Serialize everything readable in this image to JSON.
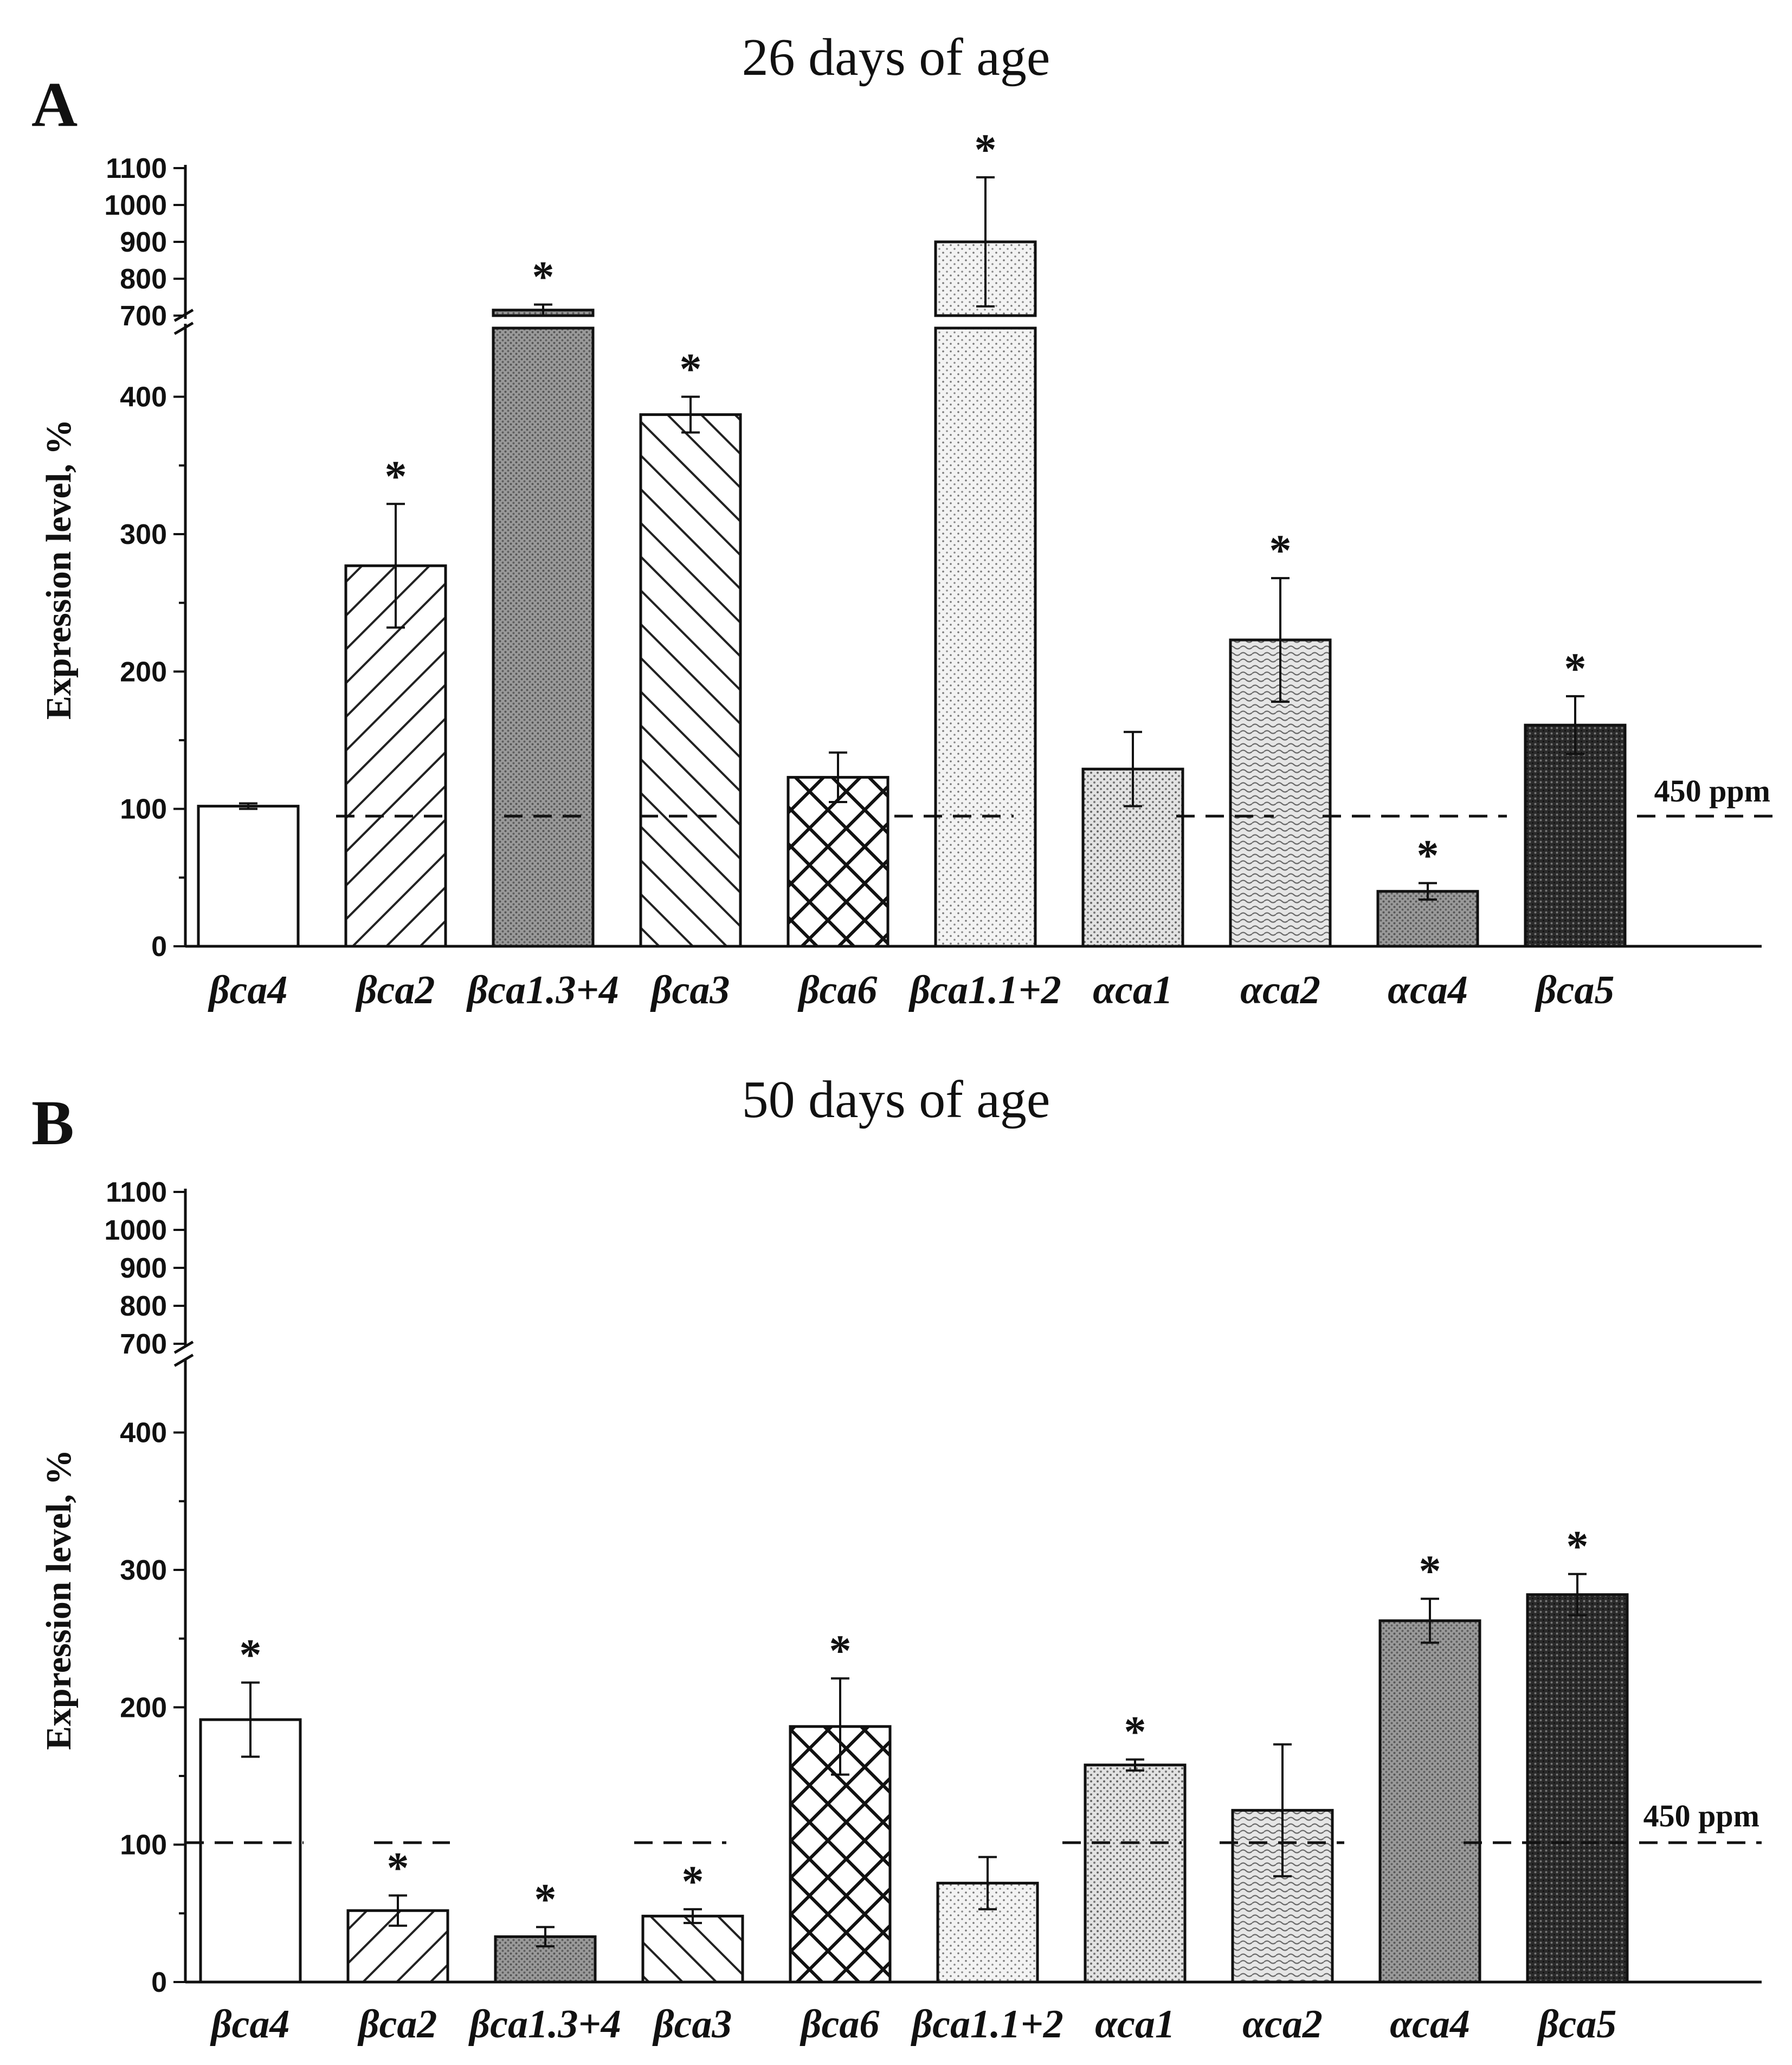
{
  "chart_data": [
    {
      "type": "bar",
      "panel_label": "A",
      "title": "26 days of age",
      "xlabel": "",
      "ylabel": "Expression level, %",
      "categories": [
        "βca4",
        "βca2",
        "βca1.3+4",
        "βca3",
        "βca6",
        "βca1.1+2",
        "αca1",
        "αca2",
        "αca4",
        "βca5"
      ],
      "values": [
        102,
        277,
        715,
        387,
        123,
        900,
        129,
        223,
        40,
        161
      ],
      "errors": [
        2,
        45,
        15,
        13,
        18,
        175,
        27,
        45,
        6,
        21
      ],
      "significant": [
        false,
        true,
        true,
        true,
        false,
        true,
        false,
        true,
        true,
        true
      ],
      "significance_marker": "*",
      "y_axis_lower": {
        "ylim": [
          0,
          450
        ],
        "ticks": [
          "0",
          "100",
          "200",
          "300",
          "400"
        ]
      },
      "y_axis_upper": {
        "ylim": [
          700,
          1100
        ],
        "ticks": [
          "700",
          "800",
          "900",
          "1000",
          "1100"
        ]
      },
      "axis_break": true,
      "reference_line": {
        "value": 100,
        "label": "450 ppm"
      },
      "grid": false
    },
    {
      "type": "bar",
      "panel_label": "B",
      "title": "50 days of age",
      "xlabel": "",
      "ylabel": "Expression level, %",
      "categories": [
        "βca4",
        "βca2",
        "βca1.3+4",
        "βca3",
        "βca6",
        "βca1.1+2",
        "αca1",
        "αca2",
        "αca4",
        "βca5"
      ],
      "values": [
        191,
        52,
        33,
        48,
        186,
        72,
        158,
        125,
        263,
        282
      ],
      "errors": [
        27,
        11,
        7,
        5,
        35,
        19,
        4,
        48,
        16,
        15
      ],
      "significant": [
        true,
        true,
        true,
        true,
        true,
        false,
        true,
        false,
        true,
        true
      ],
      "significance_marker": "*",
      "y_axis_lower": {
        "ylim": [
          0,
          450
        ],
        "ticks": [
          "0",
          "100",
          "200",
          "300",
          "400"
        ]
      },
      "y_axis_upper": {
        "ylim": [
          700,
          1100
        ],
        "ticks": [
          "700",
          "800",
          "900",
          "1000",
          "1100"
        ]
      },
      "axis_break": true,
      "reference_line": {
        "value": 100,
        "label": "450 ppm"
      },
      "grid": false
    }
  ]
}
